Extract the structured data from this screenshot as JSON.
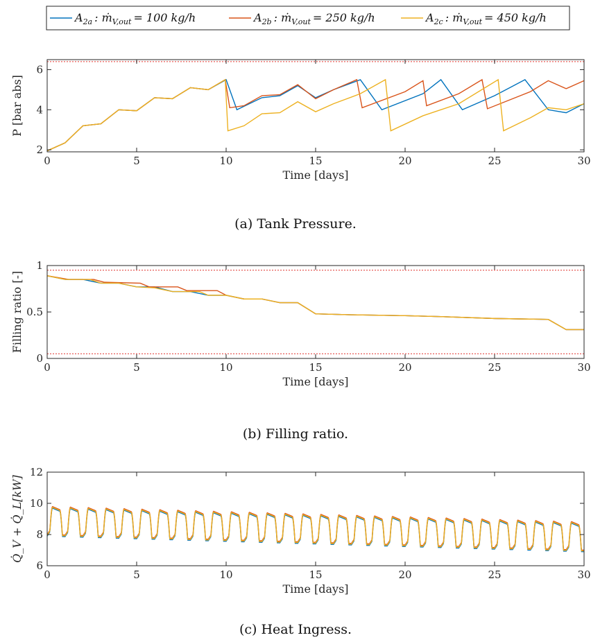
{
  "legend": {
    "entries": [
      {
        "label": "A_{2a} : ṁ_{V,out} = 100 kg/h",
        "main": "A",
        "sub": "2a",
        "mid": ": ṁ",
        "sub2": "V,out",
        "rest": "= 100 kg/h"
      },
      {
        "label": "A_{2b} : ṁ_{V,out} = 250 kg/h",
        "main": "A",
        "sub": "2b",
        "mid": ": ṁ",
        "sub2": "V,out",
        "rest": "= 250 kg/h"
      },
      {
        "label": "A_{2c} : ṁ_{V,out} = 450 kg/h",
        "main": "A",
        "sub": "2c",
        "mid": ": ṁ",
        "sub2": "V,out",
        "rest": "= 450 kg/h"
      }
    ],
    "placement": "top-center"
  },
  "colors": {
    "series_a": "#0072BD",
    "series_b": "#D95319",
    "series_c": "#EDB120",
    "limit": "#E0302A",
    "axis": "#262626"
  },
  "captions": {
    "a": "(a) Tank Pressure.",
    "b": "(b) Filling ratio.",
    "c": "(c) Heat Ingress."
  },
  "chart_data": [
    {
      "type": "line",
      "panel": "a",
      "title": "",
      "xlabel": "Time [days]",
      "ylabel": "P [bar abs]",
      "xlim": [
        0,
        30
      ],
      "ylim": [
        1.9,
        6.5
      ],
      "xticks": [
        0,
        5,
        10,
        15,
        20,
        25,
        30
      ],
      "yticks": [
        2,
        4,
        6
      ],
      "grid": false,
      "reference_lines": [
        6.4
      ],
      "series": [
        {
          "name": "A_{2a} : ṁ_{V,out} = 100 kg/h",
          "points": [
            [
              0,
              1.95
            ],
            [
              1,
              2.35
            ],
            [
              2,
              3.2
            ],
            [
              3,
              3.3
            ],
            [
              4,
              4.0
            ],
            [
              5,
              3.95
            ],
            [
              6,
              4.6
            ],
            [
              7,
              4.55
            ],
            [
              8,
              5.1
            ],
            [
              9,
              5.0
            ],
            [
              10,
              5.5
            ],
            [
              10.6,
              4.0
            ],
            [
              12,
              4.6
            ],
            [
              13,
              4.7
            ],
            [
              14,
              5.2
            ],
            [
              15,
              4.6
            ],
            [
              16,
              5.0
            ],
            [
              17.5,
              5.5
            ],
            [
              18.7,
              4.0
            ],
            [
              21,
              4.8
            ],
            [
              22,
              5.5
            ],
            [
              23.2,
              4.0
            ],
            [
              25,
              4.7
            ],
            [
              26.7,
              5.5
            ],
            [
              28,
              4.0
            ],
            [
              29,
              3.85
            ],
            [
              30,
              4.3
            ]
          ]
        },
        {
          "name": "A_{2b} : ṁ_{V,out} = 250 kg/h",
          "points": [
            [
              0,
              1.95
            ],
            [
              1,
              2.35
            ],
            [
              2,
              3.2
            ],
            [
              3,
              3.3
            ],
            [
              4,
              4.0
            ],
            [
              5,
              3.95
            ],
            [
              6,
              4.6
            ],
            [
              7,
              4.55
            ],
            [
              8,
              5.1
            ],
            [
              9,
              5.0
            ],
            [
              9.95,
              5.5
            ],
            [
              10.2,
              4.1
            ],
            [
              11,
              4.2
            ],
            [
              12,
              4.7
            ],
            [
              13,
              4.75
            ],
            [
              14,
              5.25
            ],
            [
              15,
              4.55
            ],
            [
              16,
              5.0
            ],
            [
              17.3,
              5.5
            ],
            [
              17.6,
              4.1
            ],
            [
              20,
              4.9
            ],
            [
              21,
              5.45
            ],
            [
              21.2,
              4.2
            ],
            [
              23,
              4.8
            ],
            [
              24.3,
              5.5
            ],
            [
              24.6,
              4.05
            ],
            [
              27,
              4.9
            ],
            [
              28,
              5.45
            ],
            [
              29,
              5.05
            ],
            [
              30,
              5.45
            ]
          ]
        },
        {
          "name": "A_{2c} : ṁ_{V,out} = 450 kg/h",
          "points": [
            [
              0,
              1.95
            ],
            [
              1,
              2.35
            ],
            [
              2,
              3.2
            ],
            [
              3,
              3.3
            ],
            [
              4,
              4.0
            ],
            [
              5,
              3.95
            ],
            [
              6,
              4.6
            ],
            [
              7,
              4.55
            ],
            [
              8,
              5.1
            ],
            [
              9,
              5.0
            ],
            [
              9.95,
              5.5
            ],
            [
              10.1,
              2.95
            ],
            [
              11,
              3.2
            ],
            [
              12,
              3.8
            ],
            [
              13,
              3.85
            ],
            [
              14,
              4.4
            ],
            [
              15,
              3.9
            ],
            [
              16,
              4.3
            ],
            [
              17.5,
              4.8
            ],
            [
              18.9,
              5.5
            ],
            [
              19.2,
              2.95
            ],
            [
              21,
              3.7
            ],
            [
              23,
              4.3
            ],
            [
              25.2,
              5.5
            ],
            [
              25.5,
              2.95
            ],
            [
              27,
              3.6
            ],
            [
              28,
              4.1
            ],
            [
              29,
              4.0
            ],
            [
              30,
              4.3
            ]
          ]
        }
      ]
    },
    {
      "type": "line",
      "panel": "b",
      "title": "",
      "xlabel": "Time [days]",
      "ylabel": "Filling ratio [-]",
      "xlim": [
        0,
        30
      ],
      "ylim": [
        0,
        1
      ],
      "xticks": [
        0,
        5,
        10,
        15,
        20,
        25,
        30
      ],
      "yticks": [
        0,
        0.5,
        1
      ],
      "grid": false,
      "reference_lines": [
        0.95,
        0.05
      ],
      "series": [
        {
          "name": "A_{2a} : ṁ_{V,out} = 100 kg/h",
          "points": [
            [
              0,
              0.89
            ],
            [
              1,
              0.85
            ],
            [
              2,
              0.85
            ],
            [
              3,
              0.81
            ],
            [
              4,
              0.81
            ],
            [
              5,
              0.77
            ],
            [
              6,
              0.77
            ],
            [
              7,
              0.72
            ],
            [
              8,
              0.72
            ],
            [
              9,
              0.68
            ],
            [
              10,
              0.68
            ],
            [
              11,
              0.64
            ],
            [
              12,
              0.64
            ],
            [
              13,
              0.6
            ],
            [
              14,
              0.6
            ],
            [
              15,
              0.48
            ],
            [
              17,
              0.47
            ],
            [
              20,
              0.46
            ],
            [
              22,
              0.45
            ],
            [
              25,
              0.43
            ],
            [
              28,
              0.42
            ],
            [
              29,
              0.31
            ],
            [
              30,
              0.31
            ]
          ]
        },
        {
          "name": "A_{2b} : ṁ_{V,out} = 250 kg/h",
          "points": [
            [
              0,
              0.89
            ],
            [
              1.2,
              0.85
            ],
            [
              2.6,
              0.85
            ],
            [
              3.2,
              0.82
            ],
            [
              5.2,
              0.81
            ],
            [
              5.7,
              0.77
            ],
            [
              7.3,
              0.77
            ],
            [
              7.8,
              0.73
            ],
            [
              9.5,
              0.73
            ],
            [
              10,
              0.68
            ],
            [
              11,
              0.64
            ],
            [
              12,
              0.64
            ],
            [
              13,
              0.6
            ],
            [
              14,
              0.6
            ],
            [
              15,
              0.48
            ],
            [
              17,
              0.47
            ],
            [
              20,
              0.46
            ],
            [
              22,
              0.45
            ],
            [
              25,
              0.43
            ],
            [
              28,
              0.42
            ],
            [
              29,
              0.31
            ],
            [
              30,
              0.31
            ]
          ]
        },
        {
          "name": "A_{2c} : ṁ_{V,out} = 450 kg/h",
          "points": [
            [
              0,
              0.89
            ],
            [
              1,
              0.85
            ],
            [
              2.4,
              0.85
            ],
            [
              3,
              0.81
            ],
            [
              4,
              0.81
            ],
            [
              5,
              0.77
            ],
            [
              6,
              0.76
            ],
            [
              7,
              0.72
            ],
            [
              8.5,
              0.72
            ],
            [
              9,
              0.68
            ],
            [
              10,
              0.68
            ],
            [
              11,
              0.64
            ],
            [
              12,
              0.64
            ],
            [
              13,
              0.6
            ],
            [
              14,
              0.6
            ],
            [
              15,
              0.48
            ],
            [
              17,
              0.47
            ],
            [
              20,
              0.46
            ],
            [
              22,
              0.45
            ],
            [
              25,
              0.43
            ],
            [
              28,
              0.42
            ],
            [
              29,
              0.31
            ],
            [
              30,
              0.31
            ]
          ]
        }
      ]
    },
    {
      "type": "line",
      "panel": "c",
      "title": "",
      "xlabel": "Time [days]",
      "ylabel": "Q̇_V + Q̇_L[kW]",
      "xlim": [
        0,
        30
      ],
      "ylim": [
        6,
        12
      ],
      "xticks": [
        0,
        5,
        10,
        15,
        20,
        25,
        30
      ],
      "yticks": [
        6,
        8,
        10,
        12
      ],
      "grid": false,
      "series": [
        {
          "name": "A_{2a} : ṁ_{V,out} = 100 kg/h",
          "daily_max_start": 9.7,
          "daily_max_end": 8.7,
          "daily_min_start": 7.9,
          "daily_min_end": 6.9,
          "end_value": 6.9
        },
        {
          "name": "A_{2b} : ṁ_{V,out} = 250 kg/h",
          "daily_max_start": 9.8,
          "daily_max_end": 8.8,
          "daily_min_start": 8.0,
          "daily_min_end": 7.0,
          "end_value": 7.0
        },
        {
          "name": "A_{2c} : ṁ_{V,out} = 450 kg/h",
          "daily_max_start": 9.75,
          "daily_max_end": 8.75,
          "daily_min_start": 7.95,
          "daily_min_end": 6.95,
          "end_value": 6.95
        }
      ]
    }
  ]
}
